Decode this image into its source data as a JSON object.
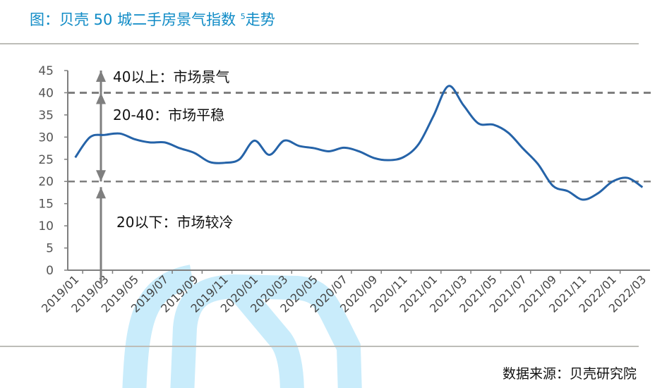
{
  "title": {
    "prefix": "图：贝壳 50 城二手房景气指数 ",
    "sup": "5",
    "suffix": "走势"
  },
  "source": "数据来源：贝壳研究院",
  "colors": {
    "line": "#2563a8",
    "title": "#0f8bc6",
    "reference": "#7f7f7f",
    "watermark": "#c9ecfb"
  },
  "watermark_icon": "beike-logo-watermark",
  "annotations": [
    {
      "text": "40以上：市场景气",
      "y": 45
    },
    {
      "text": "20-40：市场平稳",
      "y": 35
    },
    {
      "text": "20以下：市场较冷",
      "y": 11
    }
  ],
  "chart_data": {
    "type": "line",
    "title": "图：贝壳 50 城二手房景气指数 5走势",
    "xlabel": "",
    "ylabel": "",
    "ylim": [
      0,
      45
    ],
    "yticks": [
      0,
      5,
      10,
      15,
      20,
      25,
      30,
      35,
      40,
      45
    ],
    "grid": false,
    "reference_lines": [
      40,
      20
    ],
    "x": [
      "2019/01",
      "2019/02",
      "2019/03",
      "2019/04",
      "2019/05",
      "2019/06",
      "2019/07",
      "2019/08",
      "2019/09",
      "2019/10",
      "2019/11",
      "2019/12",
      "2020/01",
      "2020/02",
      "2020/03",
      "2020/04",
      "2020/05",
      "2020/06",
      "2020/07",
      "2020/08",
      "2020/09",
      "2020/10",
      "2020/11",
      "2020/12",
      "2021/01",
      "2021/02",
      "2021/03",
      "2021/04",
      "2021/05",
      "2021/06",
      "2021/07",
      "2021/08",
      "2021/09",
      "2021/10",
      "2021/11",
      "2021/12",
      "2022/01",
      "2022/02",
      "2022/03"
    ],
    "xticks": [
      "2019/01",
      "2019/03",
      "2019/05",
      "2019/07",
      "2019/09",
      "2019/11",
      "2020/01",
      "2020/03",
      "2020/05",
      "2020/07",
      "2020/09",
      "2020/11",
      "2021/01",
      "2021/03",
      "2021/05",
      "2021/07",
      "2021/09",
      "2021/11",
      "2022/01",
      "2022/03"
    ],
    "values": [
      25.4,
      30.0,
      30.5,
      30.8,
      29.5,
      28.8,
      28.8,
      27.5,
      26.4,
      24.4,
      24.2,
      25.0,
      29.2,
      26.0,
      29.2,
      28.0,
      27.5,
      26.8,
      27.6,
      26.8,
      25.3,
      24.8,
      25.5,
      28.4,
      34.8,
      41.5,
      37.2,
      33.1,
      32.8,
      31.0,
      27.4,
      23.9,
      19.0,
      17.8,
      15.9,
      17.3,
      20.0,
      20.8,
      18.7
    ]
  }
}
